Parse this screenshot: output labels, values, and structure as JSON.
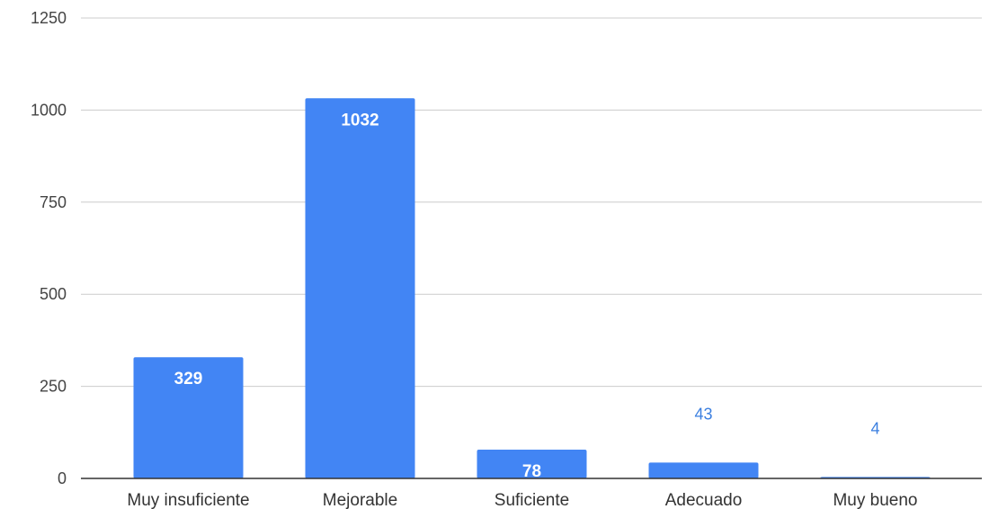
{
  "chart_data": {
    "type": "bar",
    "title": "",
    "xlabel": "",
    "ylabel": "",
    "categories": [
      "Muy insuficiente",
      "Mejorable",
      "Suficiente",
      "Adecuado",
      "Muy bueno"
    ],
    "values": [
      329,
      1032,
      78,
      43,
      4
    ],
    "ylim": [
      0,
      1250
    ],
    "yticks": [
      0,
      250,
      500,
      750,
      1000,
      1250
    ],
    "grid": true,
    "legend": "none",
    "colors": {
      "bar": "#4285f4",
      "grid": "#cccccc",
      "axis": "#333333",
      "label_outside": "#3b7fe0"
    }
  }
}
